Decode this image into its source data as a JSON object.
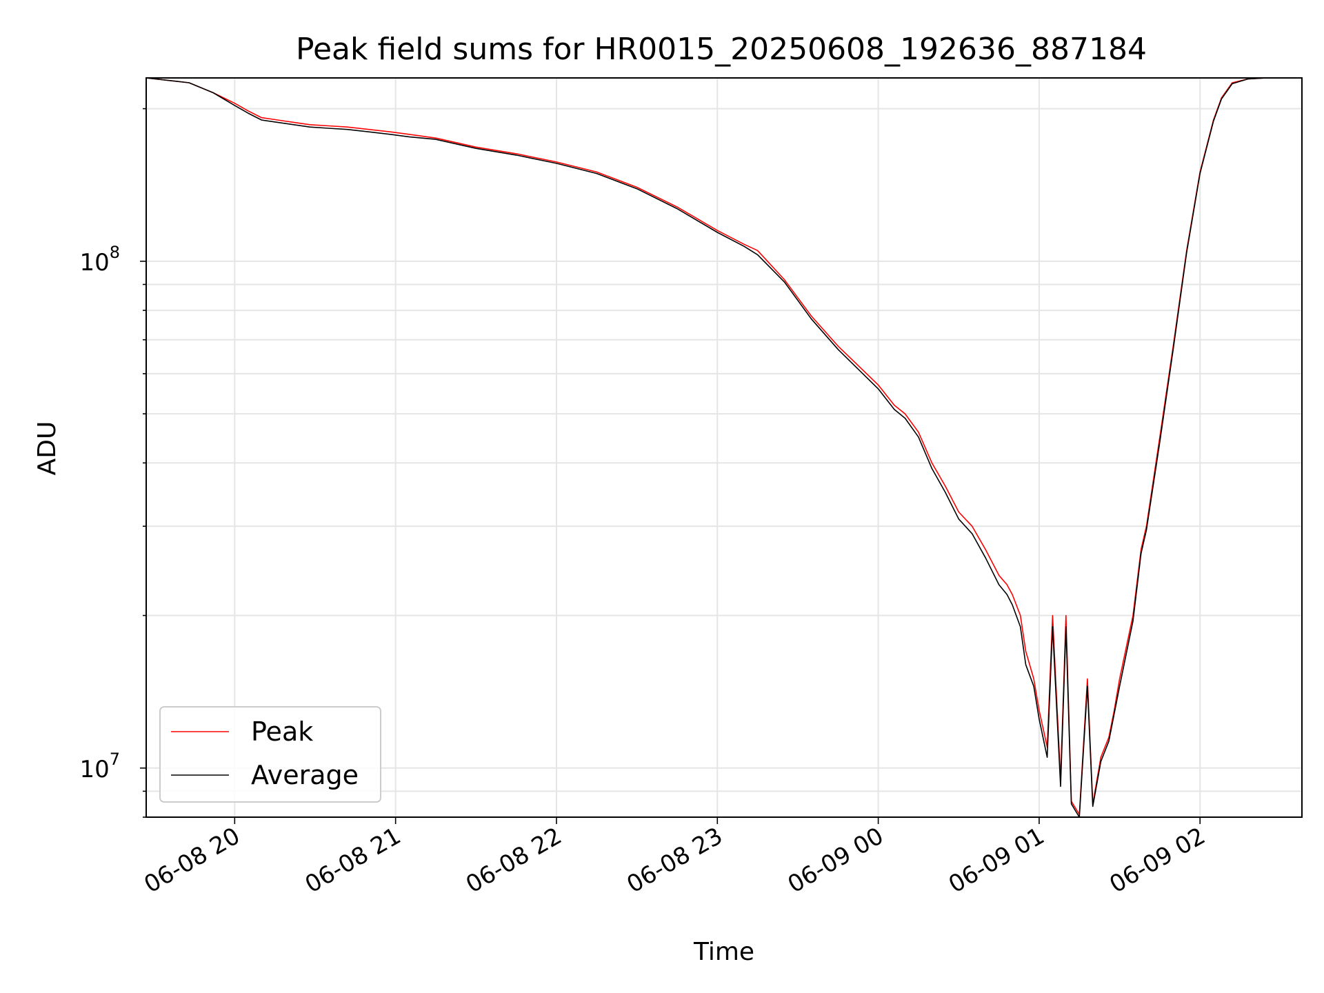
{
  "chart_data": {
    "type": "line",
    "title": "Peak field sums for HR0015_20250608_192636_887184",
    "xlabel": "Time",
    "ylabel": "ADU",
    "yscale": "log",
    "ylim": [
      8000000,
      230000000
    ],
    "xlim": [
      "2025-06-08 19:27",
      "2025-06-09 02:38"
    ],
    "grid": true,
    "legend": "lower-left",
    "x_ticks": [
      "06-08 20",
      "06-08 21",
      "06-08 22",
      "06-08 23",
      "06-09 00",
      "06-09 01",
      "06-09 02"
    ],
    "y_ticks": [
      {
        "base": "10",
        "exp": "7",
        "value": 10000000
      },
      {
        "base": "10",
        "exp": "8",
        "value": 100000000
      }
    ],
    "series": [
      {
        "name": "Peak",
        "color": "#ff0000",
        "x": [
          "2025-06-08 19:27",
          "2025-06-08 19:43",
          "2025-06-08 19:52",
          "2025-06-08 20:00",
          "2025-06-08 20:05",
          "2025-06-08 20:10",
          "2025-06-08 20:16",
          "2025-06-08 20:22",
          "2025-06-08 20:28",
          "2025-06-08 20:35",
          "2025-06-08 20:42",
          "2025-06-08 20:50",
          "2025-06-08 20:58",
          "2025-06-08 21:05",
          "2025-06-08 21:15",
          "2025-06-08 21:30",
          "2025-06-08 21:45",
          "2025-06-08 22:00",
          "2025-06-08 22:15",
          "2025-06-08 22:30",
          "2025-06-08 22:45",
          "2025-06-08 23:00",
          "2025-06-08 23:10",
          "2025-06-08 23:15",
          "2025-06-08 23:25",
          "2025-06-08 23:35",
          "2025-06-08 23:45",
          "2025-06-09 00:00",
          "2025-06-09 00:06",
          "2025-06-09 00:10",
          "2025-06-09 00:15",
          "2025-06-09 00:20",
          "2025-06-09 00:25",
          "2025-06-09 00:30",
          "2025-06-09 00:35",
          "2025-06-09 00:40",
          "2025-06-09 00:45",
          "2025-06-09 00:48",
          "2025-06-09 00:50",
          "2025-06-09 00:53",
          "2025-06-09 00:55",
          "2025-06-09 00:58",
          "2025-06-09 01:00",
          "2025-06-09 01:03",
          "2025-06-09 01:05",
          "2025-06-09 01:08",
          "2025-06-09 01:10",
          "2025-06-09 01:12",
          "2025-06-09 01:15",
          "2025-06-09 01:18",
          "2025-06-09 01:20",
          "2025-06-09 01:23",
          "2025-06-09 01:26",
          "2025-06-09 01:28",
          "2025-06-09 01:30",
          "2025-06-09 01:35",
          "2025-06-09 01:38",
          "2025-06-09 01:40",
          "2025-06-09 01:45",
          "2025-06-09 01:50",
          "2025-06-09 01:55",
          "2025-06-09 02:00",
          "2025-06-09 02:05",
          "2025-06-09 02:08",
          "2025-06-09 02:12",
          "2025-06-09 02:18",
          "2025-06-09 02:25",
          "2025-06-09 02:38"
        ],
        "y": [
          230000000,
          225000000,
          215000000,
          205000000,
          198000000,
          192000000,
          190000000,
          188000000,
          186000000,
          185000000,
          184000000,
          182000000,
          180000000,
          178000000,
          175000000,
          168000000,
          163000000,
          157000000,
          150000000,
          140000000,
          128000000,
          115000000,
          108000000,
          105000000,
          92000000,
          78000000,
          68000000,
          57000000,
          52000000,
          50000000,
          46000000,
          40000000,
          36000000,
          32000000,
          30000000,
          27000000,
          24000000,
          23000000,
          22000000,
          20000000,
          17000000,
          15000000,
          13000000,
          11000000,
          20000000,
          9500000,
          20000000,
          8600000,
          8100000,
          15000000,
          8500000,
          10500000,
          11500000,
          13000000,
          15000000,
          20000000,
          27000000,
          30000000,
          45000000,
          68000000,
          105000000,
          150000000,
          190000000,
          210000000,
          225000000,
          229000000,
          230000000,
          230000000
        ]
      },
      {
        "name": "Average",
        "color": "#000000",
        "x": [
          "2025-06-08 19:27",
          "2025-06-08 19:43",
          "2025-06-08 19:52",
          "2025-06-08 20:00",
          "2025-06-08 20:05",
          "2025-06-08 20:10",
          "2025-06-08 20:16",
          "2025-06-08 20:22",
          "2025-06-08 20:28",
          "2025-06-08 20:35",
          "2025-06-08 20:42",
          "2025-06-08 20:50",
          "2025-06-08 20:58",
          "2025-06-08 21:05",
          "2025-06-08 21:15",
          "2025-06-08 21:30",
          "2025-06-08 21:45",
          "2025-06-08 22:00",
          "2025-06-08 22:15",
          "2025-06-08 22:30",
          "2025-06-08 22:45",
          "2025-06-08 23:00",
          "2025-06-08 23:10",
          "2025-06-08 23:15",
          "2025-06-08 23:25",
          "2025-06-08 23:35",
          "2025-06-08 23:45",
          "2025-06-09 00:00",
          "2025-06-09 00:06",
          "2025-06-09 00:10",
          "2025-06-09 00:15",
          "2025-06-09 00:20",
          "2025-06-09 00:25",
          "2025-06-09 00:30",
          "2025-06-09 00:35",
          "2025-06-09 00:40",
          "2025-06-09 00:45",
          "2025-06-09 00:48",
          "2025-06-09 00:50",
          "2025-06-09 00:53",
          "2025-06-09 00:55",
          "2025-06-09 00:58",
          "2025-06-09 01:00",
          "2025-06-09 01:03",
          "2025-06-09 01:05",
          "2025-06-09 01:08",
          "2025-06-09 01:10",
          "2025-06-09 01:12",
          "2025-06-09 01:15",
          "2025-06-09 01:18",
          "2025-06-09 01:20",
          "2025-06-09 01:23",
          "2025-06-09 01:26",
          "2025-06-09 01:28",
          "2025-06-09 01:30",
          "2025-06-09 01:35",
          "2025-06-09 01:38",
          "2025-06-09 01:40",
          "2025-06-09 01:45",
          "2025-06-09 01:50",
          "2025-06-09 01:55",
          "2025-06-09 02:00",
          "2025-06-09 02:05",
          "2025-06-09 02:08",
          "2025-06-09 02:12",
          "2025-06-09 02:18",
          "2025-06-09 02:25",
          "2025-06-09 02:38"
        ],
        "y": [
          230000000,
          225000000,
          215000000,
          203000000,
          196000000,
          190000000,
          188000000,
          186000000,
          184000000,
          183000000,
          182000000,
          180000000,
          178000000,
          176000000,
          174000000,
          167000000,
          162000000,
          156000000,
          149000000,
          139000000,
          127000000,
          114000000,
          107000000,
          103000000,
          91000000,
          77000000,
          67000000,
          56000000,
          51000000,
          49000000,
          45000000,
          39000000,
          35000000,
          31000000,
          29000000,
          26000000,
          23000000,
          22000000,
          21000000,
          19000000,
          16000000,
          14500000,
          12500000,
          10500000,
          19000000,
          9200000,
          19000000,
          8500000,
          8000000,
          14500000,
          8400000,
          10300000,
          11300000,
          12800000,
          14500000,
          19500000,
          26500000,
          29500000,
          44000000,
          67000000,
          104000000,
          149000000,
          189000000,
          209000000,
          224000000,
          229000000,
          230000000,
          230000000
        ]
      }
    ]
  }
}
